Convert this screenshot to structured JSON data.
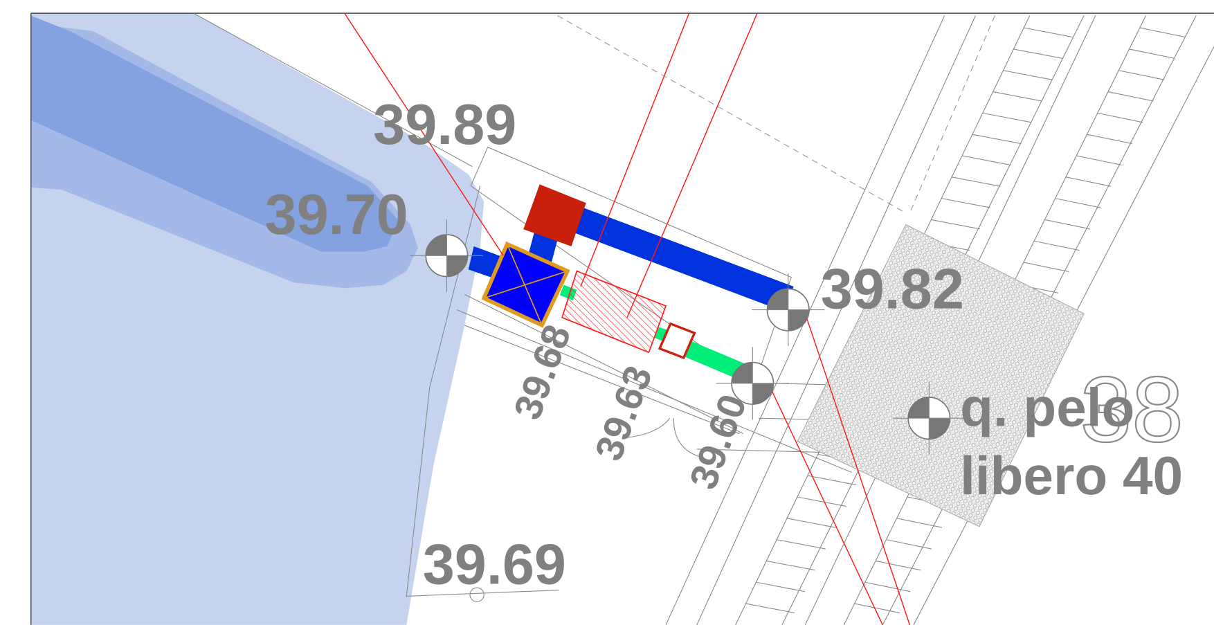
{
  "labels": [
    "39.89",
    "39.70",
    "39.82",
    "39.68",
    "39.63",
    "39.60",
    "39.69"
  ],
  "note": [
    "q. pelo",
    "libero 40"
  ],
  "contour": "38"
}
